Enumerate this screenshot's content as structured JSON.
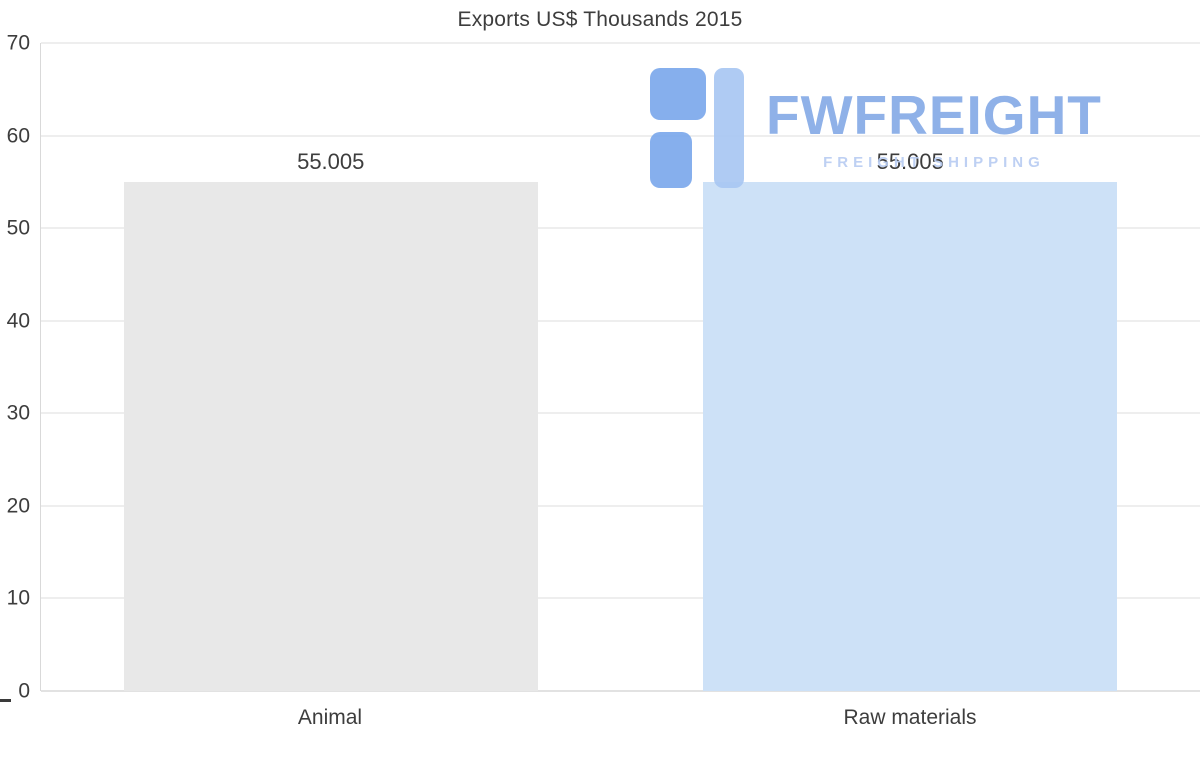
{
  "chart_data": {
    "type": "bar",
    "title": "Exports US$ Thousands 2015",
    "categories": [
      "Animal",
      "Raw materials"
    ],
    "values": [
      55.005,
      55.005
    ],
    "value_labels": [
      "55.005",
      "55.005"
    ],
    "ylim": [
      0,
      70
    ],
    "yticks": [
      0,
      10,
      20,
      30,
      40,
      50,
      60,
      70
    ],
    "xlabel": "",
    "ylabel": "",
    "grid": "horizontal",
    "legend": "none",
    "bar_colors": [
      "#e8e8e8",
      "#cde1f7"
    ]
  },
  "watermark": {
    "brand": "FWFREIGHT",
    "tagline": "FREIGHT SHIPPING"
  },
  "colors": {
    "watermark_brand": "#86abe7",
    "watermark_tagline": "#b9cdf2",
    "watermark_icon_dark": "#7ca9ec",
    "watermark_icon_light": "#a9c7f3",
    "gridline": "#dcdcdc",
    "axis_text": "#3d3d3d",
    "bar_animal": "#e8e8e8",
    "bar_raw_materials": "#cde1f7"
  }
}
